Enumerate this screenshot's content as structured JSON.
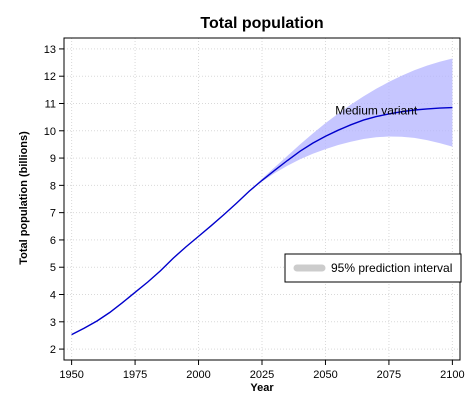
{
  "chart_data": {
    "type": "line",
    "title": "Total population",
    "xlabel": "Year",
    "ylabel": "Total population (billions)",
    "xlim": [
      1947,
      2103
    ],
    "ylim": [
      1.6,
      13.4
    ],
    "x_ticks": [
      1950,
      1975,
      2000,
      2025,
      2050,
      2075,
      2100
    ],
    "y_ticks": [
      2,
      3,
      4,
      5,
      6,
      7,
      8,
      9,
      10,
      11,
      12,
      13
    ],
    "grid": true,
    "line_color": "#0000cc",
    "band_color": "#b3b3ff",
    "legend": {
      "position": "right",
      "entries": [
        "95% prediction interval"
      ]
    },
    "annotations": [
      {
        "text": "Medium variant",
        "x": 2070,
        "y": 10.6
      }
    ],
    "series": [
      {
        "x": [
          1950,
          1955,
          1960,
          1965,
          1970,
          1975,
          1980,
          1985,
          1990,
          1995,
          2000,
          2005,
          2010,
          2015,
          2020,
          2025,
          2030,
          2035,
          2040,
          2045,
          2050,
          2055,
          2060,
          2065,
          2070,
          2075,
          2080,
          2085,
          2090,
          2095,
          2100
        ],
        "values": [
          2.53,
          2.77,
          3.03,
          3.34,
          3.7,
          4.08,
          4.46,
          4.87,
          5.33,
          5.74,
          6.13,
          6.52,
          6.93,
          7.35,
          7.79,
          8.18,
          8.55,
          8.91,
          9.25,
          9.55,
          9.8,
          10.02,
          10.22,
          10.39,
          10.52,
          10.62,
          10.7,
          10.76,
          10.8,
          10.83,
          10.85
        ]
      }
    ],
    "interval": {
      "label": "95% prediction interval",
      "x": [
        2015,
        2020,
        2025,
        2030,
        2035,
        2040,
        2045,
        2050,
        2055,
        2060,
        2065,
        2070,
        2075,
        2080,
        2085,
        2090,
        2095,
        2100
      ],
      "lower": [
        7.35,
        7.78,
        8.14,
        8.45,
        8.72,
        8.96,
        9.16,
        9.33,
        9.48,
        9.6,
        9.7,
        9.76,
        9.79,
        9.78,
        9.74,
        9.66,
        9.55,
        9.42
      ],
      "upper": [
        7.35,
        7.81,
        8.24,
        8.66,
        9.08,
        9.5,
        9.9,
        10.28,
        10.63,
        10.96,
        11.26,
        11.54,
        11.79,
        12.02,
        12.22,
        12.39,
        12.53,
        12.65
      ]
    }
  }
}
